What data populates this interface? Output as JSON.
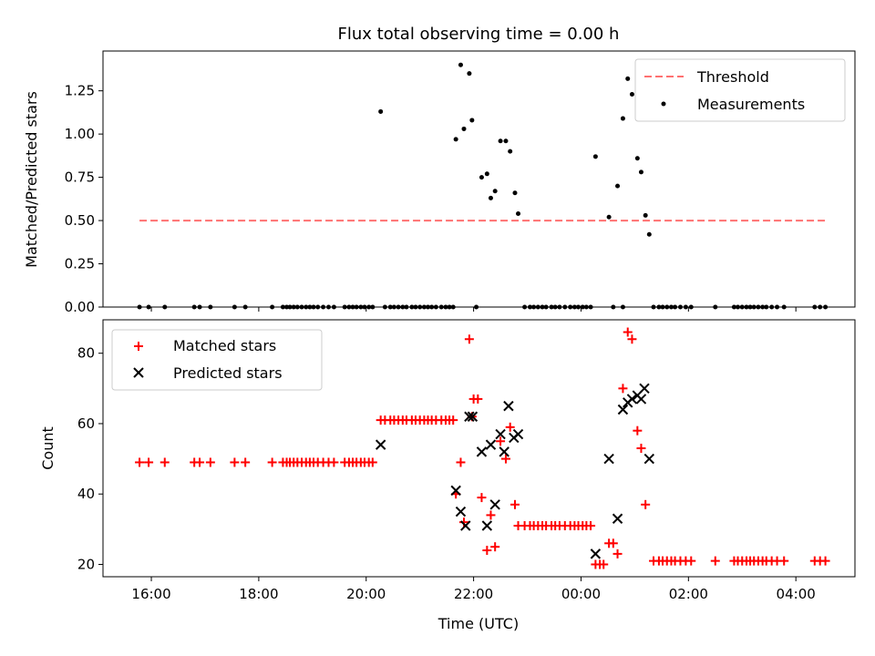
{
  "chart_data": [
    {
      "type": "scatter",
      "title": "Flux total observing time = 0.00 h",
      "ylabel": "Matched/Predicted stars",
      "xlabel": "",
      "ylim": [
        0,
        1.48
      ],
      "xlim_hours": [
        15.1,
        29.1
      ],
      "ytick_labels": [
        "0.00",
        "0.25",
        "0.50",
        "0.75",
        "1.00",
        "1.25"
      ],
      "yticks": [
        0,
        0.25,
        0.5,
        0.75,
        1.0,
        1.25
      ],
      "legend": {
        "position": "top-right",
        "entries": [
          "Threshold",
          "Measurements"
        ]
      },
      "threshold": {
        "name": "Threshold",
        "value": 0.5,
        "x_range": [
          15.78,
          28.55
        ],
        "color": "#ff7070"
      },
      "series": [
        {
          "name": "Measurements",
          "color": "#000000",
          "points": [
            [
              20.27,
              1.13
            ],
            [
              21.67,
              0.97
            ],
            [
              21.76,
              1.4
            ],
            [
              21.82,
              1.03
            ],
            [
              21.92,
              1.35
            ],
            [
              21.97,
              1.08
            ],
            [
              22.15,
              0.75
            ],
            [
              22.25,
              0.77
            ],
            [
              22.32,
              0.63
            ],
            [
              22.4,
              0.67
            ],
            [
              22.5,
              0.96
            ],
            [
              22.6,
              0.96
            ],
            [
              22.68,
              0.9
            ],
            [
              22.77,
              0.66
            ],
            [
              22.83,
              0.54
            ],
            [
              24.27,
              0.87
            ],
            [
              24.52,
              0.52
            ],
            [
              24.68,
              0.7
            ],
            [
              24.78,
              1.09
            ],
            [
              24.87,
              1.32
            ],
            [
              24.95,
              1.23
            ],
            [
              25.05,
              0.86
            ],
            [
              25.12,
              0.78
            ],
            [
              25.2,
              0.53
            ],
            [
              25.27,
              0.42
            ],
            [
              15.78,
              0
            ],
            [
              15.95,
              0
            ],
            [
              16.25,
              0
            ],
            [
              16.8,
              0
            ],
            [
              16.9,
              0
            ],
            [
              17.1,
              0
            ],
            [
              17.55,
              0
            ],
            [
              17.75,
              0
            ],
            [
              18.25,
              0
            ],
            [
              18.45,
              0
            ],
            [
              18.52,
              0
            ],
            [
              18.58,
              0
            ],
            [
              18.65,
              0
            ],
            [
              18.72,
              0
            ],
            [
              18.8,
              0
            ],
            [
              18.88,
              0
            ],
            [
              18.95,
              0
            ],
            [
              19.02,
              0
            ],
            [
              19.1,
              0
            ],
            [
              19.2,
              0
            ],
            [
              19.3,
              0
            ],
            [
              19.4,
              0
            ],
            [
              19.6,
              0
            ],
            [
              19.68,
              0
            ],
            [
              19.75,
              0
            ],
            [
              19.82,
              0
            ],
            [
              19.9,
              0
            ],
            [
              19.97,
              0
            ],
            [
              20.05,
              0
            ],
            [
              20.12,
              0
            ],
            [
              20.35,
              0
            ],
            [
              20.45,
              0
            ],
            [
              20.52,
              0
            ],
            [
              20.6,
              0
            ],
            [
              20.68,
              0
            ],
            [
              20.75,
              0
            ],
            [
              20.85,
              0
            ],
            [
              20.92,
              0
            ],
            [
              21.0,
              0
            ],
            [
              21.08,
              0
            ],
            [
              21.15,
              0
            ],
            [
              21.22,
              0
            ],
            [
              21.3,
              0
            ],
            [
              21.4,
              0
            ],
            [
              21.48,
              0
            ],
            [
              21.55,
              0
            ],
            [
              21.62,
              0
            ],
            [
              22.05,
              0
            ],
            [
              22.95,
              0
            ],
            [
              23.05,
              0
            ],
            [
              23.12,
              0
            ],
            [
              23.2,
              0
            ],
            [
              23.28,
              0
            ],
            [
              23.35,
              0
            ],
            [
              23.45,
              0
            ],
            [
              23.52,
              0
            ],
            [
              23.6,
              0
            ],
            [
              23.7,
              0
            ],
            [
              23.8,
              0
            ],
            [
              23.88,
              0
            ],
            [
              23.95,
              0
            ],
            [
              24.03,
              0
            ],
            [
              24.1,
              0
            ],
            [
              24.18,
              0
            ],
            [
              24.6,
              0
            ],
            [
              24.78,
              0
            ],
            [
              25.35,
              0
            ],
            [
              25.45,
              0
            ],
            [
              25.52,
              0
            ],
            [
              25.6,
              0
            ],
            [
              25.68,
              0
            ],
            [
              25.75,
              0
            ],
            [
              25.85,
              0
            ],
            [
              25.95,
              0
            ],
            [
              26.05,
              0
            ],
            [
              26.5,
              0
            ],
            [
              26.85,
              0
            ],
            [
              26.92,
              0
            ],
            [
              27.0,
              0
            ],
            [
              27.08,
              0
            ],
            [
              27.15,
              0
            ],
            [
              27.22,
              0
            ],
            [
              27.3,
              0
            ],
            [
              27.38,
              0
            ],
            [
              27.45,
              0
            ],
            [
              27.55,
              0
            ],
            [
              27.65,
              0
            ],
            [
              27.78,
              0
            ],
            [
              28.35,
              0
            ],
            [
              28.45,
              0
            ],
            [
              28.55,
              0
            ]
          ]
        }
      ]
    },
    {
      "type": "scatter",
      "title": "",
      "ylabel": "Count",
      "xlabel": "Time (UTC)",
      "ylim": [
        16.5,
        89.5
      ],
      "xlim_hours": [
        15.1,
        29.1
      ],
      "ytick_labels": [
        "20",
        "40",
        "60",
        "80"
      ],
      "yticks": [
        20,
        40,
        60,
        80
      ],
      "xtick_labels": [
        "16:00",
        "18:00",
        "20:00",
        "22:00",
        "00:00",
        "02:00",
        "04:00"
      ],
      "xticks": [
        16,
        18,
        20,
        22,
        24,
        26,
        28
      ],
      "legend": {
        "position": "top-left",
        "entries": [
          "Matched stars",
          "Predicted stars"
        ]
      },
      "series": [
        {
          "name": "Matched stars",
          "marker": "plus",
          "color": "#ff0000",
          "points": [
            [
              15.78,
              49
            ],
            [
              15.95,
              49
            ],
            [
              16.25,
              49
            ],
            [
              16.8,
              49
            ],
            [
              16.9,
              49
            ],
            [
              17.1,
              49
            ],
            [
              17.55,
              49
            ],
            [
              17.75,
              49
            ],
            [
              18.25,
              49
            ],
            [
              18.45,
              49
            ],
            [
              18.52,
              49
            ],
            [
              18.58,
              49
            ],
            [
              18.65,
              49
            ],
            [
              18.72,
              49
            ],
            [
              18.8,
              49
            ],
            [
              18.88,
              49
            ],
            [
              18.95,
              49
            ],
            [
              19.02,
              49
            ],
            [
              19.1,
              49
            ],
            [
              19.2,
              49
            ],
            [
              19.3,
              49
            ],
            [
              19.4,
              49
            ],
            [
              19.6,
              49
            ],
            [
              19.68,
              49
            ],
            [
              19.75,
              49
            ],
            [
              19.82,
              49
            ],
            [
              19.9,
              49
            ],
            [
              19.97,
              49
            ],
            [
              20.05,
              49
            ],
            [
              20.12,
              49
            ],
            [
              20.27,
              61
            ],
            [
              20.35,
              61
            ],
            [
              20.45,
              61
            ],
            [
              20.52,
              61
            ],
            [
              20.6,
              61
            ],
            [
              20.68,
              61
            ],
            [
              20.75,
              61
            ],
            [
              20.85,
              61
            ],
            [
              20.92,
              61
            ],
            [
              21.0,
              61
            ],
            [
              21.08,
              61
            ],
            [
              21.15,
              61
            ],
            [
              21.22,
              61
            ],
            [
              21.3,
              61
            ],
            [
              21.4,
              61
            ],
            [
              21.48,
              61
            ],
            [
              21.55,
              61
            ],
            [
              21.62,
              61
            ],
            [
              21.67,
              40
            ],
            [
              21.76,
              49
            ],
            [
              21.82,
              32
            ],
            [
              21.92,
              84
            ],
            [
              21.97,
              62
            ],
            [
              22.0,
              67
            ],
            [
              22.08,
              67
            ],
            [
              22.15,
              39
            ],
            [
              22.25,
              24
            ],
            [
              22.32,
              34
            ],
            [
              22.4,
              25
            ],
            [
              22.5,
              55
            ],
            [
              22.6,
              50
            ],
            [
              22.68,
              59
            ],
            [
              22.77,
              37
            ],
            [
              22.83,
              31
            ],
            [
              22.95,
              31
            ],
            [
              23.05,
              31
            ],
            [
              23.12,
              31
            ],
            [
              23.2,
              31
            ],
            [
              23.28,
              31
            ],
            [
              23.35,
              31
            ],
            [
              23.45,
              31
            ],
            [
              23.52,
              31
            ],
            [
              23.6,
              31
            ],
            [
              23.7,
              31
            ],
            [
              23.8,
              31
            ],
            [
              23.88,
              31
            ],
            [
              23.95,
              31
            ],
            [
              24.03,
              31
            ],
            [
              24.1,
              31
            ],
            [
              24.18,
              31
            ],
            [
              24.27,
              20
            ],
            [
              24.35,
              20
            ],
            [
              24.42,
              20
            ],
            [
              24.52,
              26
            ],
            [
              24.6,
              26
            ],
            [
              24.68,
              23
            ],
            [
              24.78,
              70
            ],
            [
              24.87,
              86
            ],
            [
              24.95,
              84
            ],
            [
              25.05,
              58
            ],
            [
              25.12,
              53
            ],
            [
              25.2,
              37
            ],
            [
              25.35,
              21
            ],
            [
              25.45,
              21
            ],
            [
              25.52,
              21
            ],
            [
              25.6,
              21
            ],
            [
              25.68,
              21
            ],
            [
              25.75,
              21
            ],
            [
              25.85,
              21
            ],
            [
              25.95,
              21
            ],
            [
              26.05,
              21
            ],
            [
              26.5,
              21
            ],
            [
              26.85,
              21
            ],
            [
              26.92,
              21
            ],
            [
              27.0,
              21
            ],
            [
              27.08,
              21
            ],
            [
              27.15,
              21
            ],
            [
              27.22,
              21
            ],
            [
              27.3,
              21
            ],
            [
              27.38,
              21
            ],
            [
              27.45,
              21
            ],
            [
              27.55,
              21
            ],
            [
              27.65,
              21
            ],
            [
              27.78,
              21
            ],
            [
              28.35,
              21
            ],
            [
              28.45,
              21
            ],
            [
              28.55,
              21
            ]
          ]
        },
        {
          "name": "Predicted stars",
          "marker": "x",
          "color": "#000000",
          "points": [
            [
              20.27,
              54
            ],
            [
              21.67,
              41
            ],
            [
              21.76,
              35
            ],
            [
              21.85,
              31
            ],
            [
              21.92,
              62
            ],
            [
              21.98,
              62
            ],
            [
              22.15,
              52
            ],
            [
              22.25,
              31
            ],
            [
              22.32,
              54
            ],
            [
              22.4,
              37
            ],
            [
              22.5,
              57
            ],
            [
              22.57,
              52
            ],
            [
              22.65,
              65
            ],
            [
              22.75,
              56
            ],
            [
              22.83,
              57
            ],
            [
              24.27,
              23
            ],
            [
              24.52,
              50
            ],
            [
              24.68,
              33
            ],
            [
              24.78,
              64
            ],
            [
              24.87,
              66
            ],
            [
              24.95,
              67
            ],
            [
              25.05,
              68
            ],
            [
              25.12,
              67
            ],
            [
              25.18,
              70
            ],
            [
              25.27,
              50
            ]
          ]
        }
      ]
    }
  ]
}
